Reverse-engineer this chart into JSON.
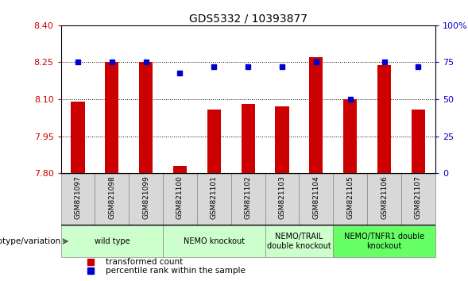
{
  "title": "GDS5332 / 10393877",
  "samples": [
    "GSM821097",
    "GSM821098",
    "GSM821099",
    "GSM821100",
    "GSM821101",
    "GSM821102",
    "GSM821103",
    "GSM821104",
    "GSM821105",
    "GSM821106",
    "GSM821107"
  ],
  "transformed_counts": [
    8.09,
    8.25,
    8.25,
    7.83,
    8.06,
    8.08,
    8.07,
    8.27,
    8.1,
    8.24,
    8.06
  ],
  "percentile_ranks": [
    75,
    75,
    75,
    68,
    72,
    72,
    72,
    75,
    50,
    75,
    72
  ],
  "ylim_left": [
    7.8,
    8.4
  ],
  "ylim_right": [
    0,
    100
  ],
  "yticks_left": [
    7.8,
    7.95,
    8.1,
    8.25,
    8.4
  ],
  "yticks_right": [
    0,
    25,
    50,
    75,
    100
  ],
  "bar_color": "#cc0000",
  "dot_color": "#0000cc",
  "groups": [
    {
      "label": "wild type",
      "start": 0,
      "end": 2,
      "color": "#ccffcc"
    },
    {
      "label": "NEMO knockout",
      "start": 3,
      "end": 5,
      "color": "#ccffcc"
    },
    {
      "label": "NEMO/TRAIL\ndouble knockout",
      "start": 6,
      "end": 7,
      "color": "#ccffcc"
    },
    {
      "label": "NEMO/TNFR1 double\nknockout",
      "start": 8,
      "end": 10,
      "color": "#66ff66"
    }
  ],
  "genotype_label": "genotype/variation",
  "legend_transformed": "transformed count",
  "legend_percentile": "percentile rank within the sample",
  "tick_color_left": "#cc0000",
  "tick_color_right": "#0000cc",
  "sample_bg_color": "#d8d8d8",
  "bar_width": 0.4
}
